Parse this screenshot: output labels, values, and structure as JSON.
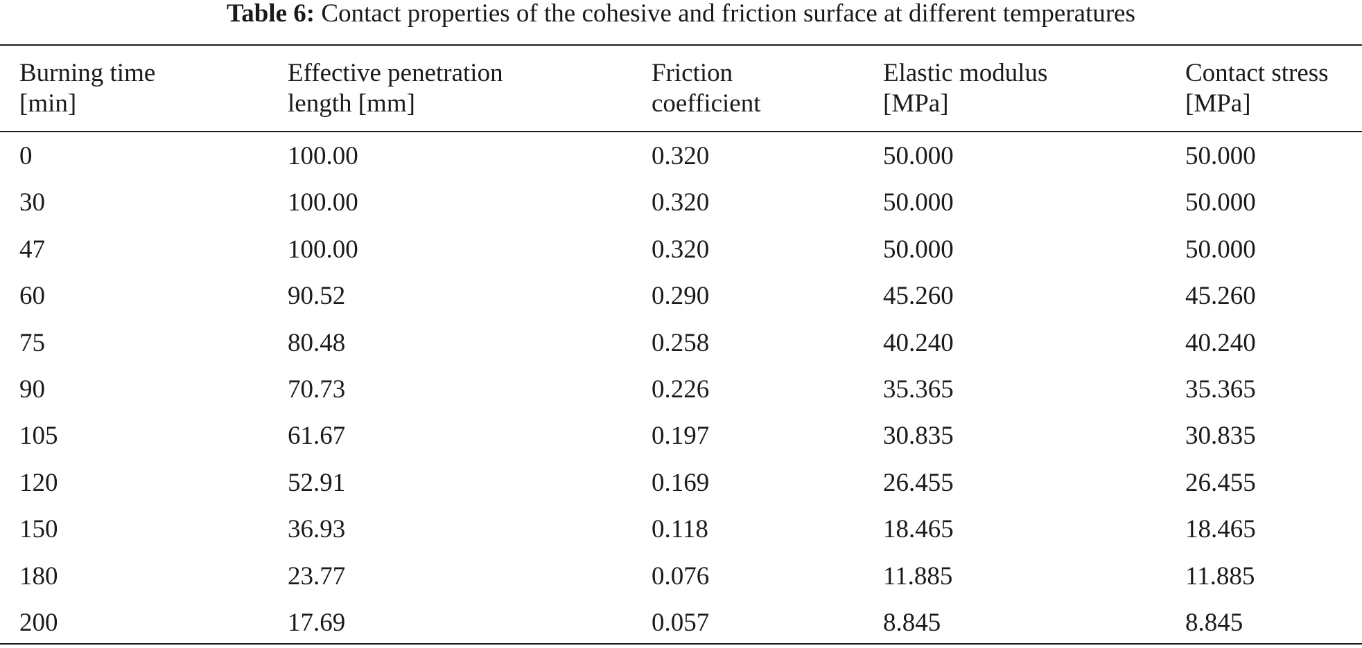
{
  "table": {
    "caption_label": "Table 6:",
    "caption_text": "Contact properties of the cohesive and friction surface at different temperatures",
    "headers": [
      [
        "Burning time",
        "[min]"
      ],
      [
        "Effective penetration",
        "length [mm]"
      ],
      [
        "Friction",
        "coefficient"
      ],
      [
        "Elastic modulus",
        "[MPa]"
      ],
      [
        "Contact stress",
        "[MPa]"
      ]
    ],
    "rows": [
      [
        "0",
        "100.00",
        "0.320",
        "50.000",
        "50.000"
      ],
      [
        "30",
        "100.00",
        "0.320",
        "50.000",
        "50.000"
      ],
      [
        "47",
        "100.00",
        "0.320",
        "50.000",
        "50.000"
      ],
      [
        "60",
        "90.52",
        "0.290",
        "45.260",
        "45.260"
      ],
      [
        "75",
        "80.48",
        "0.258",
        "40.240",
        "40.240"
      ],
      [
        "90",
        "70.73",
        "0.226",
        "35.365",
        "35.365"
      ],
      [
        "105",
        "61.67",
        "0.197",
        "30.835",
        "30.835"
      ],
      [
        "120",
        "52.91",
        "0.169",
        "26.455",
        "26.455"
      ],
      [
        "150",
        "36.93",
        "0.118",
        "18.465",
        "18.465"
      ],
      [
        "180",
        "23.77",
        "0.076",
        "11.885",
        "11.885"
      ],
      [
        "200",
        "17.69",
        "0.057",
        "8.845",
        "8.845"
      ]
    ]
  }
}
